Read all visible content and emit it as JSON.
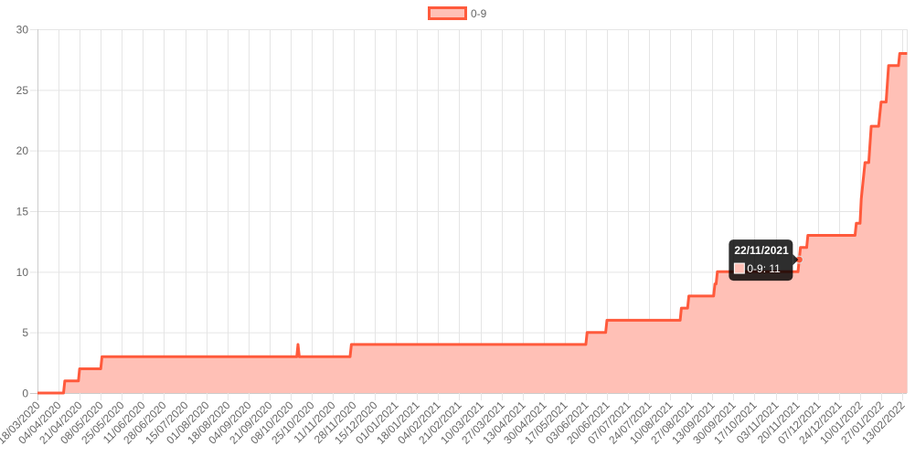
{
  "chart_data": {
    "type": "area",
    "title": "",
    "xlabel": "",
    "ylabel": "",
    "ylim": [
      0,
      30
    ],
    "yticks": [
      "0",
      "5",
      "10",
      "15",
      "20",
      "25",
      "30"
    ],
    "grid": true,
    "legend_position": "top-center",
    "x_tick_labels": [
      "18/03/2020",
      "04/04/2020",
      "21/04/2020",
      "08/05/2020",
      "25/05/2020",
      "11/06/2020",
      "28/06/2020",
      "15/07/2020",
      "01/08/2020",
      "18/08/2020",
      "04/09/2020",
      "21/09/2020",
      "08/10/2020",
      "25/10/2020",
      "11/11/2020",
      "28/11/2020",
      "15/12/2020",
      "01/01/2021",
      "18/01/2021",
      "04/02/2021",
      "21/02/2021",
      "10/03/2021",
      "27/03/2021",
      "13/04/2021",
      "30/04/2021",
      "17/05/2021",
      "03/06/2021",
      "20/06/2021",
      "07/07/2021",
      "24/07/2021",
      "10/08/2021",
      "27/08/2021",
      "13/09/2021",
      "30/09/2021",
      "17/10/2021",
      "03/11/2021",
      "20/11/2021",
      "07/12/2021",
      "24/12/2021",
      "10/01/2022",
      "27/01/2022",
      "13/02/2022"
    ],
    "series": [
      {
        "name": "0-9",
        "line_color": "#ff5a3c",
        "fill_color": "#ffc0b6",
        "points": [
          [
            "18/03/2020",
            0
          ],
          [
            "08/04/2020",
            0
          ],
          [
            "09/04/2020",
            1
          ],
          [
            "20/04/2020",
            1
          ],
          [
            "21/04/2020",
            2
          ],
          [
            "08/05/2020",
            2
          ],
          [
            "09/05/2020",
            3
          ],
          [
            "13/10/2020",
            3
          ],
          [
            "14/10/2020",
            4
          ],
          [
            "15/10/2020",
            3
          ],
          [
            "25/11/2020",
            3
          ],
          [
            "26/11/2020",
            4
          ],
          [
            "03/06/2021",
            4
          ],
          [
            "04/06/2021",
            5
          ],
          [
            "19/06/2021",
            5
          ],
          [
            "20/06/2021",
            6
          ],
          [
            "18/08/2021",
            6
          ],
          [
            "19/08/2021",
            7
          ],
          [
            "24/08/2021",
            7
          ],
          [
            "25/08/2021",
            8
          ],
          [
            "14/09/2021",
            8
          ],
          [
            "15/09/2021",
            9
          ],
          [
            "16/09/2021",
            9
          ],
          [
            "17/09/2021",
            10
          ],
          [
            "21/11/2021",
            10
          ],
          [
            "22/11/2021",
            11
          ],
          [
            "23/11/2021",
            12
          ],
          [
            "28/11/2021",
            12
          ],
          [
            "29/11/2021",
            13
          ],
          [
            "06/01/2022",
            13
          ],
          [
            "07/01/2022",
            14
          ],
          [
            "10/01/2022",
            14
          ],
          [
            "11/01/2022",
            16
          ],
          [
            "14/01/2022",
            19
          ],
          [
            "17/01/2022",
            19
          ],
          [
            "19/01/2022",
            22
          ],
          [
            "25/01/2022",
            22
          ],
          [
            "27/01/2022",
            24
          ],
          [
            "31/01/2022",
            24
          ],
          [
            "02/02/2022",
            27
          ],
          [
            "10/02/2022",
            27
          ],
          [
            "11/02/2022",
            28
          ],
          [
            "17/02/2022",
            28
          ]
        ]
      }
    ],
    "tooltip": {
      "date": "22/11/2021",
      "label": "0-9: 11",
      "value": 11
    }
  }
}
